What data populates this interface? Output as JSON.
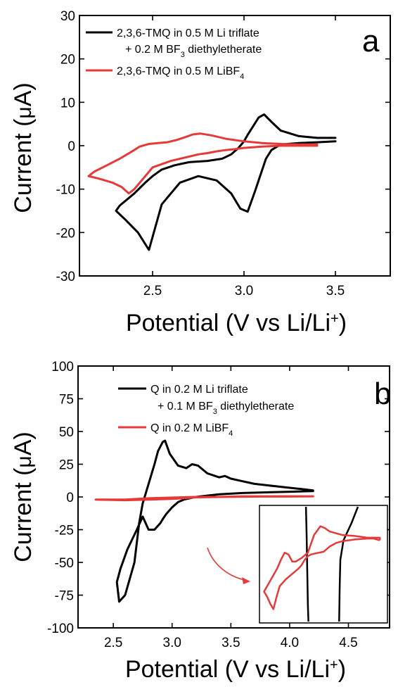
{
  "chart_data": [
    {
      "type": "line",
      "panel_label": "a",
      "xlabel": "Potential (V vs Li/Li+)",
      "ylabel": "Current (μA)",
      "xlim": [
        2.1,
        3.8
      ],
      "ylim": [
        -30,
        30
      ],
      "xticks": [
        2.5,
        3.0,
        3.5
      ],
      "xtick_labels": [
        "2.5",
        "3.0",
        "3.5"
      ],
      "yticks": [
        -30,
        -20,
        -10,
        0,
        10,
        20,
        30
      ],
      "ytick_labels": [
        "-30",
        "-20",
        "-10",
        "0",
        "10",
        "20",
        "30"
      ],
      "legend_position": "top-left",
      "series": [
        {
          "name": "2,3,6-TMQ in 0.5 M Li triflate + 0.2 M BF3 diethyletherate",
          "legend_lines": [
            "2,3,6-TMQ in 0.5 M Li triflate",
            "+ 0.2 M BF3 diethyletherate"
          ],
          "color": "#000000",
          "x": [
            3.5,
            3.4,
            3.3,
            3.2,
            3.15,
            3.12,
            3.1,
            3.06,
            3.02,
            2.98,
            2.93,
            2.85,
            2.75,
            2.65,
            2.55,
            2.48,
            2.42,
            2.35,
            2.3,
            2.32,
            2.4,
            2.46,
            2.5,
            2.55,
            2.62,
            2.7,
            2.8,
            2.88,
            2.93,
            2.97,
            3.0,
            3.02,
            3.05,
            3.08,
            3.11,
            3.15,
            3.2,
            3.3,
            3.4,
            3.5
          ],
          "y": [
            1.0,
            0.8,
            0.6,
            0.3,
            -1.0,
            -3.0,
            -5.5,
            -10.5,
            -15.2,
            -14.5,
            -11.0,
            -8.0,
            -7.0,
            -8.5,
            -13.5,
            -24.0,
            -20.0,
            -17.0,
            -15.0,
            -13.8,
            -11.0,
            -8.5,
            -7.0,
            -5.5,
            -4.5,
            -3.8,
            -3.5,
            -3.0,
            -2.0,
            -0.5,
            1.0,
            2.5,
            4.5,
            6.5,
            7.2,
            5.5,
            3.5,
            2.2,
            1.8,
            1.8
          ]
        },
        {
          "name": "2,3,6-TMQ in 0.5 M LiBF4",
          "legend_lines": [
            "2,3,6-TMQ in 0.5 M LiBF4"
          ],
          "color": "#e53a3a",
          "x": [
            3.4,
            3.3,
            3.2,
            3.1,
            3.0,
            2.95,
            2.9,
            2.85,
            2.8,
            2.75,
            2.7,
            2.6,
            2.5,
            2.45,
            2.4,
            2.37,
            2.33,
            2.28,
            2.2,
            2.15,
            2.18,
            2.25,
            2.32,
            2.38,
            2.43,
            2.48,
            2.53,
            2.58,
            2.63,
            2.68,
            2.72,
            2.76,
            2.82,
            2.9,
            3.0,
            3.1,
            3.2,
            3.3,
            3.4
          ],
          "y": [
            0.0,
            0.0,
            0.0,
            -0.2,
            -0.5,
            -0.8,
            -1.0,
            -1.3,
            -1.7,
            -2.0,
            -2.5,
            -3.5,
            -5.0,
            -7.5,
            -10.0,
            -11.0,
            -9.5,
            -8.5,
            -7.5,
            -7.0,
            -6.0,
            -4.5,
            -3.0,
            -1.5,
            -0.2,
            0.4,
            0.6,
            0.8,
            1.3,
            2.0,
            2.6,
            2.8,
            2.4,
            1.6,
            1.0,
            0.6,
            0.4,
            0.3,
            0.3
          ]
        }
      ]
    },
    {
      "type": "line",
      "panel_label": "b",
      "xlabel": "Potential (V vs Li/Li+)",
      "ylabel": "Current (μA)",
      "xlim": [
        2.2,
        4.85
      ],
      "ylim": [
        -100,
        100
      ],
      "xticks": [
        2.5,
        3.0,
        3.5,
        4.0,
        4.5
      ],
      "xtick_labels": [
        "2.5",
        "3.0",
        "3.5",
        "4.0",
        "4.5"
      ],
      "yticks": [
        -100,
        -75,
        -50,
        -25,
        0,
        25,
        50,
        75,
        100
      ],
      "ytick_labels": [
        "-100",
        "-75",
        "-50",
        "-25",
        "0",
        "25",
        "50",
        "75",
        "100"
      ],
      "legend_position": "top-left",
      "inset": "zoom of the red curve near 0 μA, bottom-right",
      "series": [
        {
          "name": "Q in 0.2 M Li triflate + 0.1 M BF3 diethyletherate",
          "legend_lines": [
            "Q in 0.2 M Li triflate",
            "+ 0.1 M BF3 diethyletherate"
          ],
          "color": "#000000",
          "x": [
            4.2,
            4.1,
            4.0,
            3.9,
            3.8,
            3.7,
            3.6,
            3.5,
            3.45,
            3.4,
            3.3,
            3.22,
            3.17,
            3.12,
            3.05,
            2.98,
            2.94,
            2.92,
            2.88,
            2.85,
            2.8,
            2.75,
            2.72,
            2.68,
            2.6,
            2.55,
            2.53,
            2.56,
            2.62,
            2.7,
            2.75,
            2.8,
            2.85,
            2.9,
            2.92,
            2.95,
            3.0,
            3.05,
            3.1,
            3.15,
            3.2,
            3.3,
            3.4,
            3.6,
            3.8,
            4.0,
            4.2
          ],
          "y": [
            5,
            6,
            7,
            8,
            9,
            10,
            12,
            14,
            16,
            15,
            18,
            24,
            25,
            22,
            24,
            33,
            43,
            42,
            35,
            25,
            10,
            -5,
            -20,
            -50,
            -75,
            -80,
            -65,
            -55,
            -40,
            -25,
            -15,
            -25,
            -25,
            -20,
            -17,
            -13,
            -8,
            -4,
            -2,
            -1,
            0,
            1,
            2,
            3,
            3.5,
            4,
            4.5
          ]
        },
        {
          "name": "Q in 0.2 M LiBF4",
          "legend_lines": [
            "Q in 0.2 M LiBF4"
          ],
          "color": "#e53a3a",
          "x": [
            2.35,
            2.6,
            2.8,
            3.0,
            3.2,
            3.4,
            3.6,
            3.8,
            4.0,
            4.2,
            4.0,
            3.8,
            3.6,
            3.4,
            3.2,
            3.0,
            2.8,
            2.6,
            2.35
          ],
          "y": [
            -2,
            -2,
            -1,
            -0.5,
            0,
            0,
            0.5,
            0.5,
            0.5,
            0.5,
            0.3,
            0.3,
            0.2,
            0,
            -0.3,
            -1.5,
            -2,
            -2.5,
            -2
          ]
        }
      ],
      "inset_data": {
        "xlim": [
          2.3,
          4.3
        ],
        "ylim": [
          -4.0,
          2.5
        ],
        "black_x": [
          3.02,
          3.03,
          3.04,
          3.05,
          3.06
        ],
        "black_y": [
          2.5,
          1.0,
          -1.0,
          -3.0,
          -4.0
        ],
        "black2_x": [
          3.55,
          3.56,
          3.57,
          3.62,
          3.75,
          3.85
        ],
        "black2_y": [
          -4.0,
          -2.0,
          -0.5,
          0.6,
          1.6,
          2.5
        ],
        "red_x": [
          4.2,
          4.1,
          4.0,
          3.8,
          3.6,
          3.5,
          3.45,
          3.4,
          3.3,
          3.2,
          3.1,
          3.05,
          3.0,
          2.95,
          2.9,
          2.8,
          2.7,
          2.6,
          2.55,
          2.5,
          2.45,
          2.4,
          2.35,
          2.4,
          2.48,
          2.56,
          2.62,
          2.68,
          2.74,
          2.8,
          2.86,
          2.95,
          3.05,
          3.15,
          3.25,
          3.32,
          3.4,
          3.5,
          3.6,
          3.8,
          4.0,
          4.1,
          4.2,
          4.2
        ],
        "red_y": [
          0.6,
          0.7,
          0.7,
          0.65,
          0.55,
          0.45,
          0.35,
          0.25,
          -0.05,
          -0.12,
          -0.2,
          -0.3,
          -0.5,
          -0.8,
          -1.0,
          -1.3,
          -1.6,
          -2.0,
          -2.6,
          -3.3,
          -3.0,
          -2.6,
          -2.3,
          -2.0,
          -1.5,
          -1.0,
          -0.5,
          -0.1,
          -0.2,
          -0.6,
          -0.6,
          -0.4,
          -0.1,
          0.9,
          1.4,
          1.3,
          1.1,
          1.0,
          0.9,
          0.85,
          0.75,
          0.75,
          0.75,
          0.6
        ]
      }
    }
  ]
}
